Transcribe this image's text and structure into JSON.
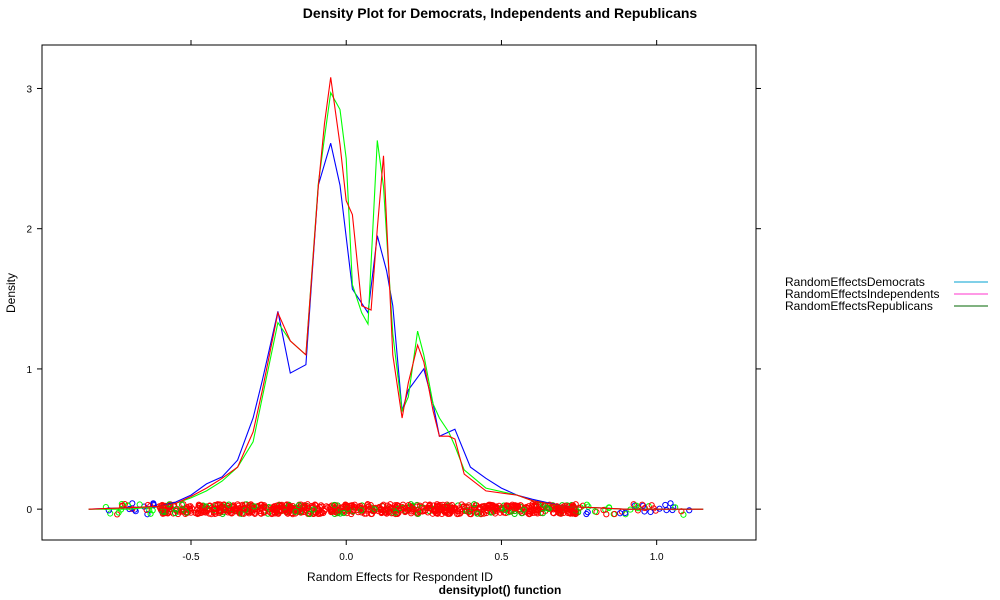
{
  "chart_data": {
    "type": "line",
    "title": "Density Plot for Democrats, Independents and Republicans",
    "subtitle": "densityplot() function",
    "xlabel": "Random Effects for Respondent ID",
    "ylabel": "Density",
    "xlim": [
      -0.98,
      1.32
    ],
    "ylim": [
      -0.22,
      3.31
    ],
    "x_ticks": [
      -0.5,
      0.0,
      0.5,
      1.0
    ],
    "x_tick_labels": [
      "-0.5",
      "0.0",
      "0.5",
      "1.0"
    ],
    "y_ticks": [
      0,
      1,
      2,
      3
    ],
    "y_tick_labels": [
      "0",
      "1",
      "2",
      "3"
    ],
    "grid": false,
    "legend_position": "right",
    "legend": [
      {
        "label": "RandomEffectsDemocrats",
        "key_color": "#00A0D0"
      },
      {
        "label": "RandomEffectsIndependents",
        "key_color": "#FF33CC"
      },
      {
        "label": "RandomEffectsRepublicans",
        "key_color": "#006400"
      }
    ],
    "series": [
      {
        "color": "#0000FF",
        "x": [
          -0.83,
          -0.7,
          -0.6,
          -0.55,
          -0.5,
          -0.45,
          -0.4,
          -0.35,
          -0.3,
          -0.27,
          -0.22,
          -0.18,
          -0.13,
          -0.09,
          -0.05,
          -0.02,
          0.02,
          0.07,
          0.1,
          0.13,
          0.15,
          0.18,
          0.2,
          0.25,
          0.28,
          0.3,
          0.35,
          0.4,
          0.45,
          0.5,
          0.55,
          0.6,
          0.7,
          0.8,
          0.9,
          1.0,
          1.15
        ],
        "values": [
          0.0,
          0.01,
          0.02,
          0.05,
          0.1,
          0.18,
          0.23,
          0.35,
          0.65,
          0.92,
          1.41,
          0.97,
          1.03,
          2.31,
          2.61,
          2.31,
          1.57,
          1.4,
          1.95,
          1.7,
          1.45,
          0.7,
          0.85,
          1.0,
          0.75,
          0.52,
          0.57,
          0.3,
          0.22,
          0.15,
          0.1,
          0.07,
          0.02,
          0.01,
          0.0,
          0.0,
          0.0
        ]
      },
      {
        "color": "#00FF00",
        "x": [
          -0.83,
          -0.7,
          -0.6,
          -0.55,
          -0.5,
          -0.45,
          -0.4,
          -0.35,
          -0.3,
          -0.27,
          -0.22,
          -0.18,
          -0.13,
          -0.09,
          -0.07,
          -0.05,
          -0.02,
          0.0,
          0.02,
          0.05,
          0.07,
          0.1,
          0.12,
          0.15,
          0.18,
          0.2,
          0.23,
          0.25,
          0.28,
          0.3,
          0.33,
          0.35,
          0.38,
          0.45,
          0.55,
          0.6,
          0.7,
          0.8,
          0.9,
          1.0,
          1.15
        ],
        "values": [
          0.0,
          0.0,
          0.02,
          0.04,
          0.08,
          0.13,
          0.2,
          0.3,
          0.48,
          0.8,
          1.33,
          1.2,
          1.1,
          2.32,
          2.65,
          2.97,
          2.85,
          2.5,
          1.6,
          1.4,
          1.32,
          2.63,
          2.3,
          1.25,
          0.7,
          0.8,
          1.27,
          1.1,
          0.75,
          0.65,
          0.55,
          0.45,
          0.28,
          0.15,
          0.1,
          0.06,
          0.02,
          0.01,
          0.0,
          0.0,
          0.0
        ]
      },
      {
        "color": "#FF0000",
        "x": [
          -0.83,
          -0.7,
          -0.6,
          -0.55,
          -0.5,
          -0.45,
          -0.4,
          -0.35,
          -0.3,
          -0.27,
          -0.22,
          -0.18,
          -0.13,
          -0.09,
          -0.07,
          -0.05,
          -0.02,
          0.0,
          0.02,
          0.05,
          0.08,
          0.1,
          0.12,
          0.15,
          0.18,
          0.2,
          0.23,
          0.25,
          0.28,
          0.3,
          0.33,
          0.35,
          0.38,
          0.45,
          0.55,
          0.6,
          0.7,
          0.8,
          0.9,
          1.0,
          1.15
        ],
        "values": [
          0.0,
          0.01,
          0.02,
          0.04,
          0.09,
          0.15,
          0.22,
          0.3,
          0.55,
          0.85,
          1.4,
          1.2,
          1.1,
          2.3,
          2.75,
          3.08,
          2.6,
          2.2,
          2.1,
          1.45,
          1.42,
          2.0,
          2.52,
          1.1,
          0.65,
          0.9,
          1.17,
          1.05,
          0.7,
          0.52,
          0.52,
          0.5,
          0.25,
          0.13,
          0.1,
          0.06,
          0.02,
          0.01,
          0.0,
          0.0,
          0.0
        ]
      }
    ]
  }
}
